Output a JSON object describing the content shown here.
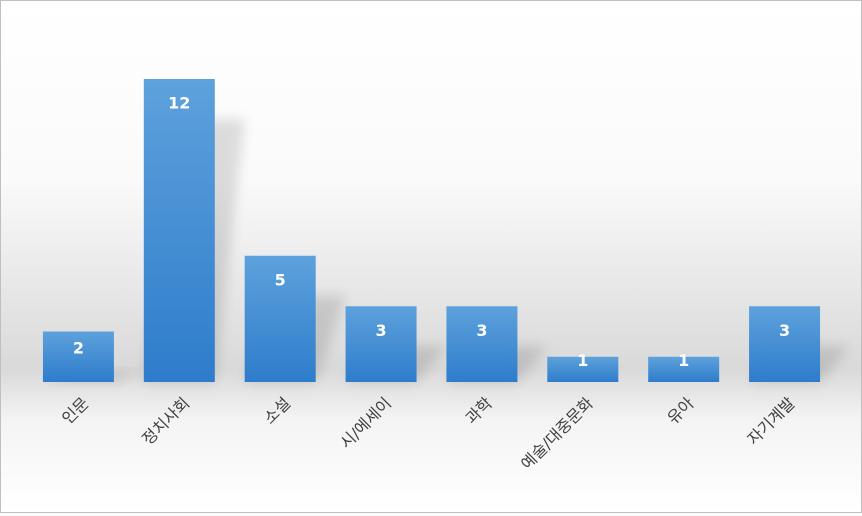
{
  "chart_data": {
    "type": "bar",
    "categories": [
      "인문",
      "정치사회",
      "소설",
      "시/에세이",
      "과학",
      "예술/대중문화",
      "유아",
      "자기계발"
    ],
    "values": [
      2,
      12,
      5,
      3,
      3,
      1,
      1,
      3
    ],
    "color": "#4a90d6"
  }
}
